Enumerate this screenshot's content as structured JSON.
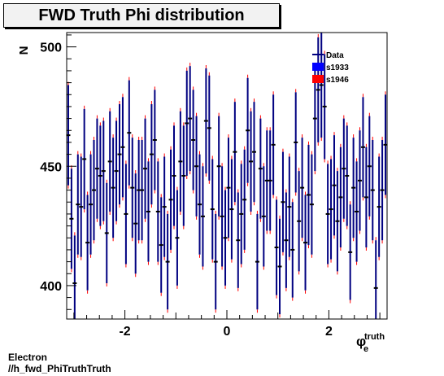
{
  "title": "FWD Truth Phi distribution",
  "footer": {
    "line1": "Electron",
    "line2": "//h_fwd_PhiTruthTruth"
  },
  "chart_data": {
    "type": "scatter",
    "title": "FWD Truth Phi distribution",
    "ylabel": "N",
    "xlabel": "φ_e^truth",
    "xlabel_main": "φ",
    "xlabel_sub": "e",
    "xlabel_sup": "truth",
    "xlim": [
      -3.1416,
      3.1416
    ],
    "ylim": [
      386,
      506
    ],
    "x_ticks": [
      -2,
      0,
      2
    ],
    "x_tick_labels": [
      "-2",
      "0",
      "2"
    ],
    "y_ticks": [
      400,
      450,
      500
    ],
    "y_tick_labels": [
      "400",
      "450",
      "500"
    ],
    "grid": false,
    "legend_position": "top-right",
    "legend": [
      {
        "name": "Data",
        "color": "#000080",
        "style": "line"
      },
      {
        "name": "s1933",
        "color": "#0000ff",
        "style": "box"
      },
      {
        "name": "s1946",
        "color": "#ff0000",
        "style": "box"
      }
    ],
    "bins": 100,
    "values": [
      463,
      428,
      401,
      434,
      433,
      453,
      418,
      434,
      440,
      449,
      446,
      448,
      422,
      452,
      441,
      448,
      455,
      458,
      430,
      464,
      441,
      426,
      440,
      440,
      449,
      431,
      455,
      461,
      431,
      417,
      433,
      410,
      436,
      446,
      420,
      452,
      446,
      468,
      470,
      461,
      450,
      434,
      429,
      469,
      466,
      432,
      410,
      450,
      429,
      420,
      441,
      432,
      456,
      419,
      430,
      436,
      465,
      452,
      456,
      410,
      449,
      429,
      444,
      444,
      459,
      416,
      408,
      435,
      419,
      433,
      415,
      460,
      427,
      441,
      418,
      438,
      434,
      470,
      482,
      484,
      475,
      430,
      432,
      442,
      427,
      437,
      449,
      446,
      414,
      441,
      431,
      444,
      458,
      437,
      450,
      440,
      399,
      433,
      440,
      459
    ],
    "errors": [
      21,
      21,
      20,
      21,
      21,
      21,
      20,
      21,
      21,
      21,
      21,
      21,
      21,
      21,
      21,
      21,
      21,
      21,
      21,
      22,
      21,
      21,
      21,
      21,
      21,
      21,
      21,
      21,
      21,
      20,
      21,
      20,
      21,
      21,
      20,
      21,
      21,
      22,
      22,
      21,
      21,
      21,
      21,
      22,
      22,
      21,
      20,
      21,
      21,
      20,
      21,
      21,
      21,
      20,
      21,
      21,
      22,
      21,
      21,
      20,
      21,
      21,
      21,
      21,
      21,
      20,
      20,
      21,
      20,
      21,
      20,
      21,
      21,
      21,
      20,
      21,
      21,
      22,
      22,
      22,
      22,
      21,
      21,
      21,
      21,
      21,
      21,
      21,
      20,
      21,
      21,
      21,
      21,
      21,
      21,
      21,
      20,
      21,
      21,
      21
    ]
  }
}
